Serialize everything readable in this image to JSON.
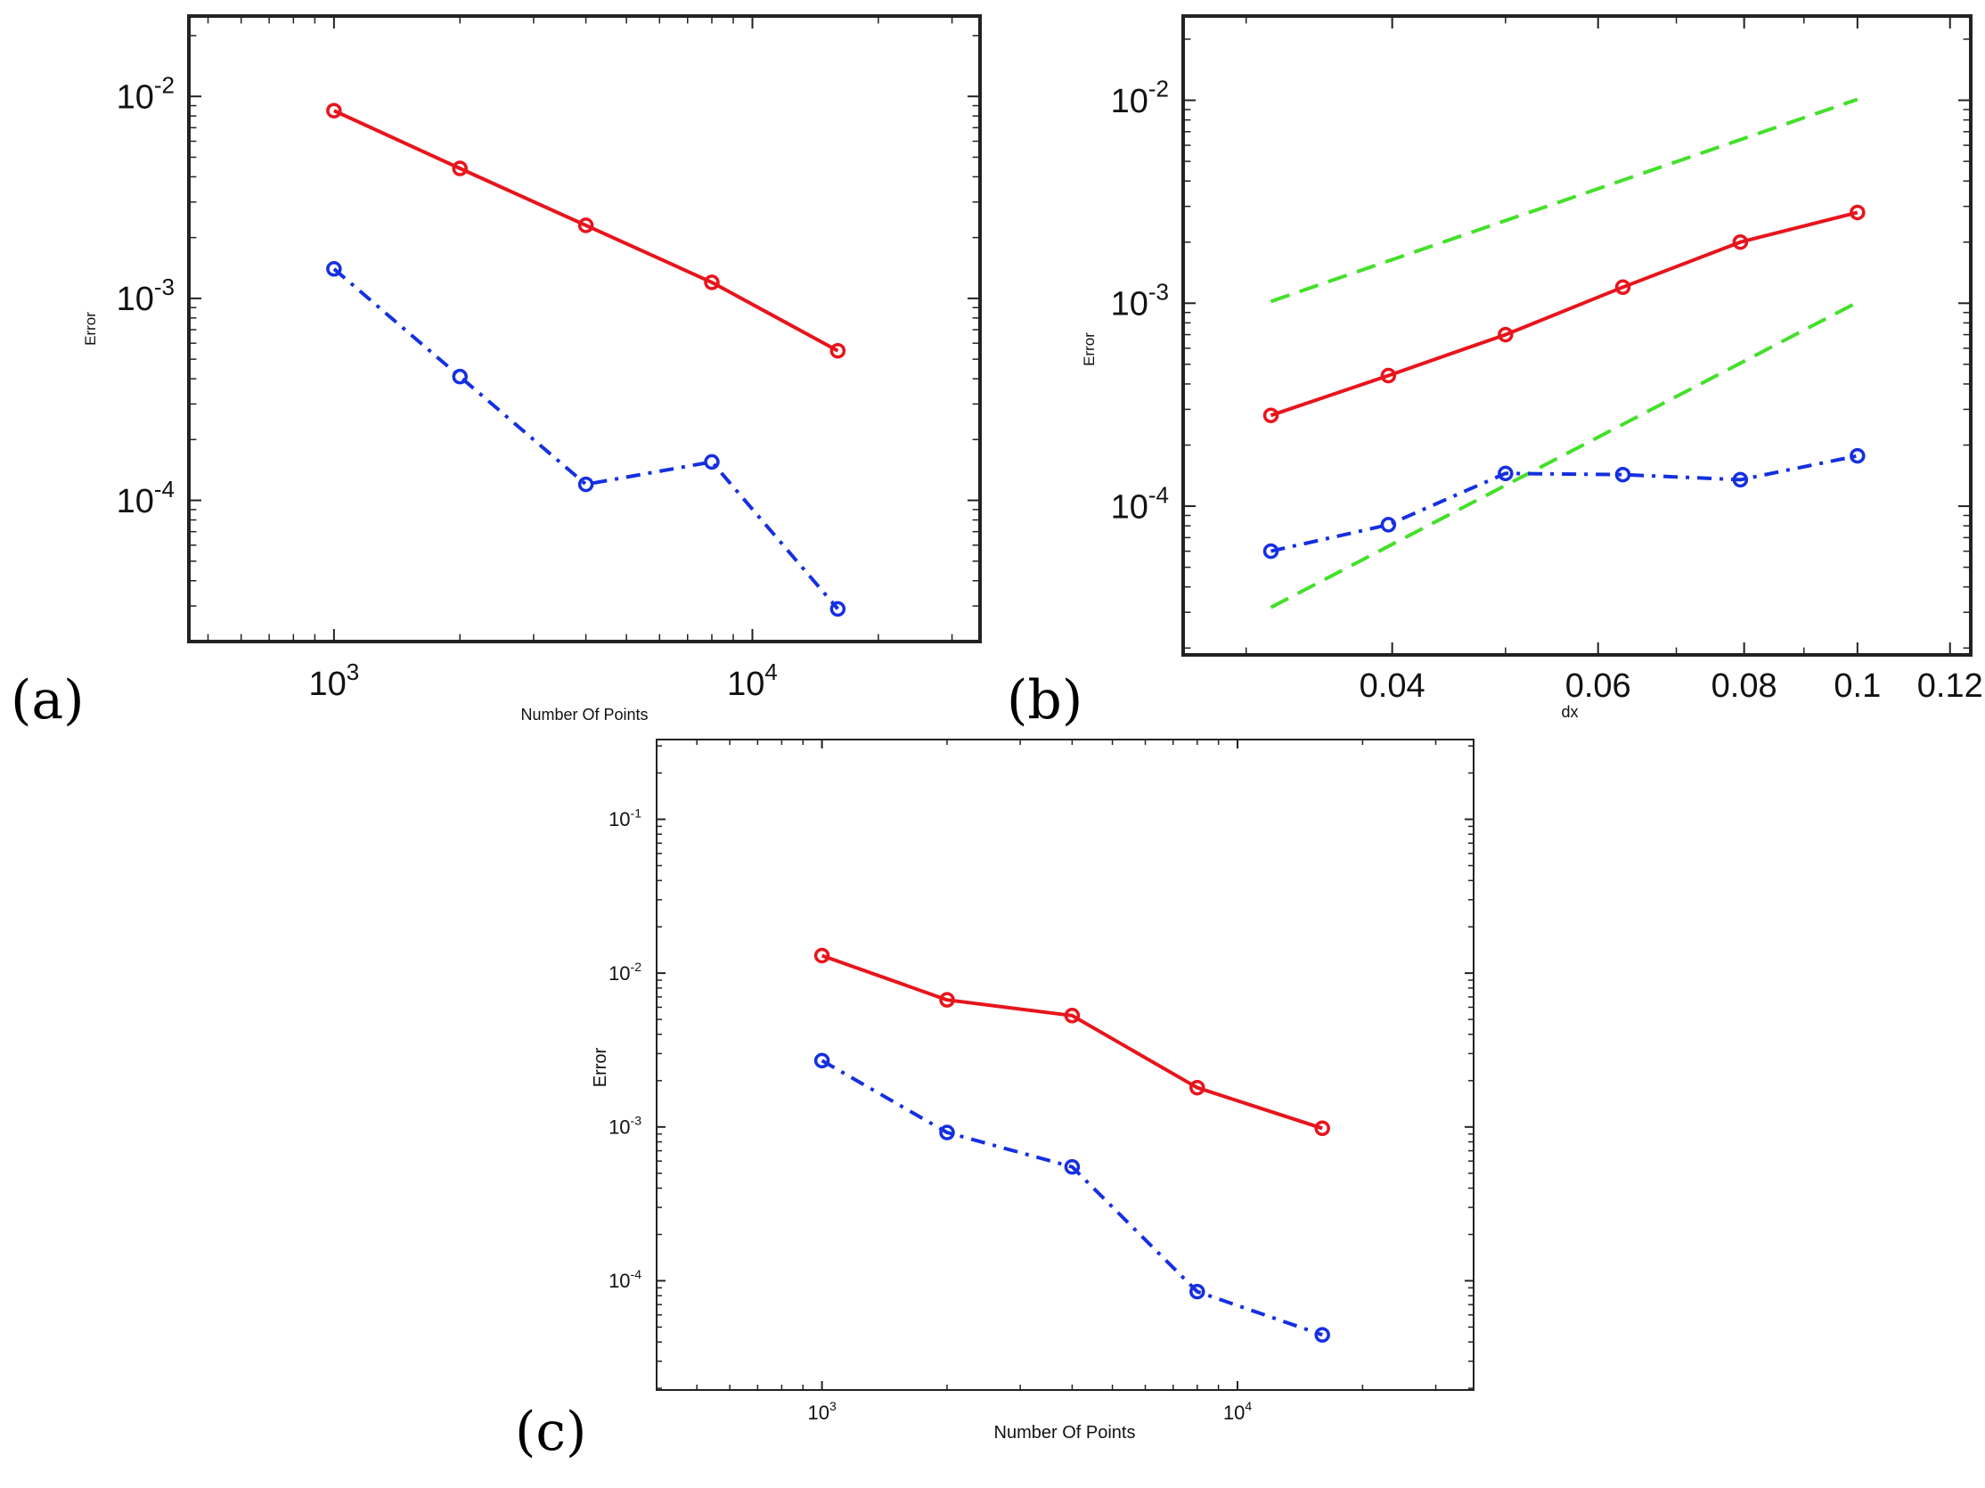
{
  "chart_data": [
    {
      "id": "a",
      "panel_label": "(a)",
      "type": "line",
      "xscale": "log",
      "yscale": "log",
      "xlim": [
        450,
        35000
      ],
      "ylim": [
        2e-05,
        0.025
      ],
      "xlabel": "Number Of Points",
      "ylabel": "Error",
      "xticks": [
        {
          "value": 1000,
          "base": "10",
          "exp": "3"
        },
        {
          "value": 10000,
          "base": "10",
          "exp": "4"
        }
      ],
      "yticks": [
        {
          "value": 0.0001,
          "base": "10",
          "exp": "-4"
        },
        {
          "value": 0.001,
          "base": "10",
          "exp": "-3"
        },
        {
          "value": 0.01,
          "base": "10",
          "exp": "-2"
        }
      ],
      "series": [
        {
          "name": "red",
          "color": "#e8141c",
          "style": "solid",
          "x": [
            1000,
            2000,
            4000,
            8000,
            16000
          ],
          "y": [
            0.0085,
            0.0044,
            0.0023,
            0.0012,
            0.00055
          ]
        },
        {
          "name": "blue",
          "color": "#1530e0",
          "style": "dashdot",
          "x": [
            1000,
            2000,
            4000,
            8000,
            16000
          ],
          "y": [
            0.0014,
            0.00041,
            0.00012,
            0.000155,
            2.9e-05
          ]
        }
      ]
    },
    {
      "id": "b",
      "panel_label": "(b)",
      "type": "line",
      "xscale": "log",
      "yscale": "log",
      "xlim": [
        0.0265,
        0.125
      ],
      "ylim": [
        1.85e-05,
        0.026
      ],
      "xlabel": "dx",
      "ylabel": "Error",
      "xticks": [
        {
          "value": 0.04,
          "label": "0.04"
        },
        {
          "value": 0.06,
          "label": "0.06"
        },
        {
          "value": 0.08,
          "label": "0.08"
        },
        {
          "value": 0.1,
          "label": "0.1"
        },
        {
          "value": 0.12,
          "label": "0.12"
        }
      ],
      "yticks": [
        {
          "value": 0.0001,
          "base": "10",
          "exp": "-4"
        },
        {
          "value": 0.001,
          "base": "10",
          "exp": "-3"
        },
        {
          "value": 0.01,
          "base": "10",
          "exp": "-2"
        }
      ],
      "series": [
        {
          "name": "reference slope 1",
          "color": "#44e02a",
          "style": "dashed",
          "marker": false,
          "x": [
            0.0315,
            0.1
          ],
          "y": [
            0.00102,
            0.0101
          ]
        },
        {
          "name": "reference slope 2",
          "color": "#44e02a",
          "style": "dashed",
          "marker": false,
          "x": [
            0.0315,
            0.1
          ],
          "y": [
            3.17e-05,
            0.00101
          ]
        },
        {
          "name": "red",
          "color": "#e8141c",
          "style": "solid",
          "x": [
            0.0315,
            0.0397,
            0.05,
            0.063,
            0.0794,
            0.1
          ],
          "y": [
            0.00028,
            0.00044,
            0.0007,
            0.0012,
            0.002,
            0.0028
          ]
        },
        {
          "name": "blue",
          "color": "#1530e0",
          "style": "dashdot",
          "x": [
            0.0315,
            0.0397,
            0.05,
            0.063,
            0.0794,
            0.1
          ],
          "y": [
            6e-05,
            8.1e-05,
            0.000145,
            0.000143,
            0.000135,
            0.000177
          ]
        }
      ]
    },
    {
      "id": "c",
      "panel_label": "(c)",
      "type": "line",
      "xscale": "log",
      "yscale": "log",
      "xlim": [
        400,
        37000
      ],
      "ylim": [
        1.95e-05,
        0.33
      ],
      "xlabel": "Number Of Points",
      "ylabel": "Error",
      "xticks": [
        {
          "value": 1000,
          "base": "10",
          "exp": "3"
        },
        {
          "value": 10000,
          "base": "10",
          "exp": "4"
        }
      ],
      "yticks": [
        {
          "value": 0.0001,
          "base": "10",
          "exp": "-4"
        },
        {
          "value": 0.001,
          "base": "10",
          "exp": "-3"
        },
        {
          "value": 0.01,
          "base": "10",
          "exp": "-2"
        },
        {
          "value": 0.1,
          "base": "10",
          "exp": "-1"
        }
      ],
      "series": [
        {
          "name": "red",
          "color": "#e8141c",
          "style": "solid",
          "x": [
            1000,
            2000,
            4000,
            8000,
            16000
          ],
          "y": [
            0.013,
            0.0067,
            0.0053,
            0.0018,
            0.00098
          ]
        },
        {
          "name": "blue",
          "color": "#1530e0",
          "style": "dashdot",
          "x": [
            1000,
            2000,
            4000,
            8000,
            16000
          ],
          "y": [
            0.0027,
            0.00092,
            0.00055,
            8.5e-05,
            4.45e-05
          ]
        }
      ]
    }
  ]
}
